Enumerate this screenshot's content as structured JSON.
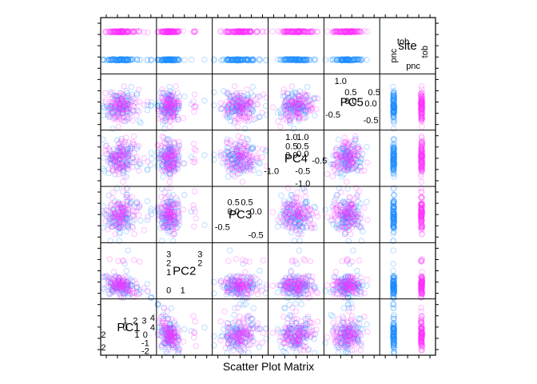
{
  "chart_data": {
    "type": "scatter",
    "plot": "scatterplot-matrix",
    "xlabel": "Scatter Plot Matrix",
    "variables": [
      "PC1",
      "PC2",
      "PC3",
      "PC4",
      "PC5",
      "site"
    ],
    "groups": [
      {
        "name": "pnc",
        "color": "#1f8fff"
      },
      {
        "name": "tob",
        "color": "#ff33ff"
      }
    ],
    "ranges": {
      "PC1": [
        -2.7,
        4.6
      ],
      "PC2": [
        -1.2,
        3.8
      ],
      "PC3": [
        -0.85,
        0.75
      ],
      "PC4": [
        -1.35,
        1.35
      ],
      "PC5": [
        -0.8,
        1.2
      ],
      "site": [
        0.5,
        2.5
      ]
    },
    "diag_labels": {
      "PC1": [
        "2",
        "4",
        "1",
        "2",
        "3",
        "4",
        "2",
        "0",
        "1",
        "0",
        "-1",
        "-2"
      ],
      "PC2": [
        "3",
        "2",
        "1",
        "2",
        "3",
        "0",
        "1"
      ],
      "PC3": [
        "0.5",
        "0.0",
        "0.5",
        "0.0",
        "-0.5",
        "-0.5"
      ],
      "PC4": [
        "1.0",
        "0.5",
        "0.0",
        "0.5",
        "1.0",
        "-1.0",
        "-0.5",
        "0.0",
        "-0.5",
        "-1.0"
      ],
      "PC5": [
        "1.0",
        "0.5",
        "0.0",
        "0.5",
        "-0.5",
        "0.0",
        "-0.5"
      ],
      "site": [
        "tob",
        "tob",
        "pnc",
        "pnc"
      ]
    },
    "n_points_per_group": 110,
    "point_alpha": 0.3
  }
}
